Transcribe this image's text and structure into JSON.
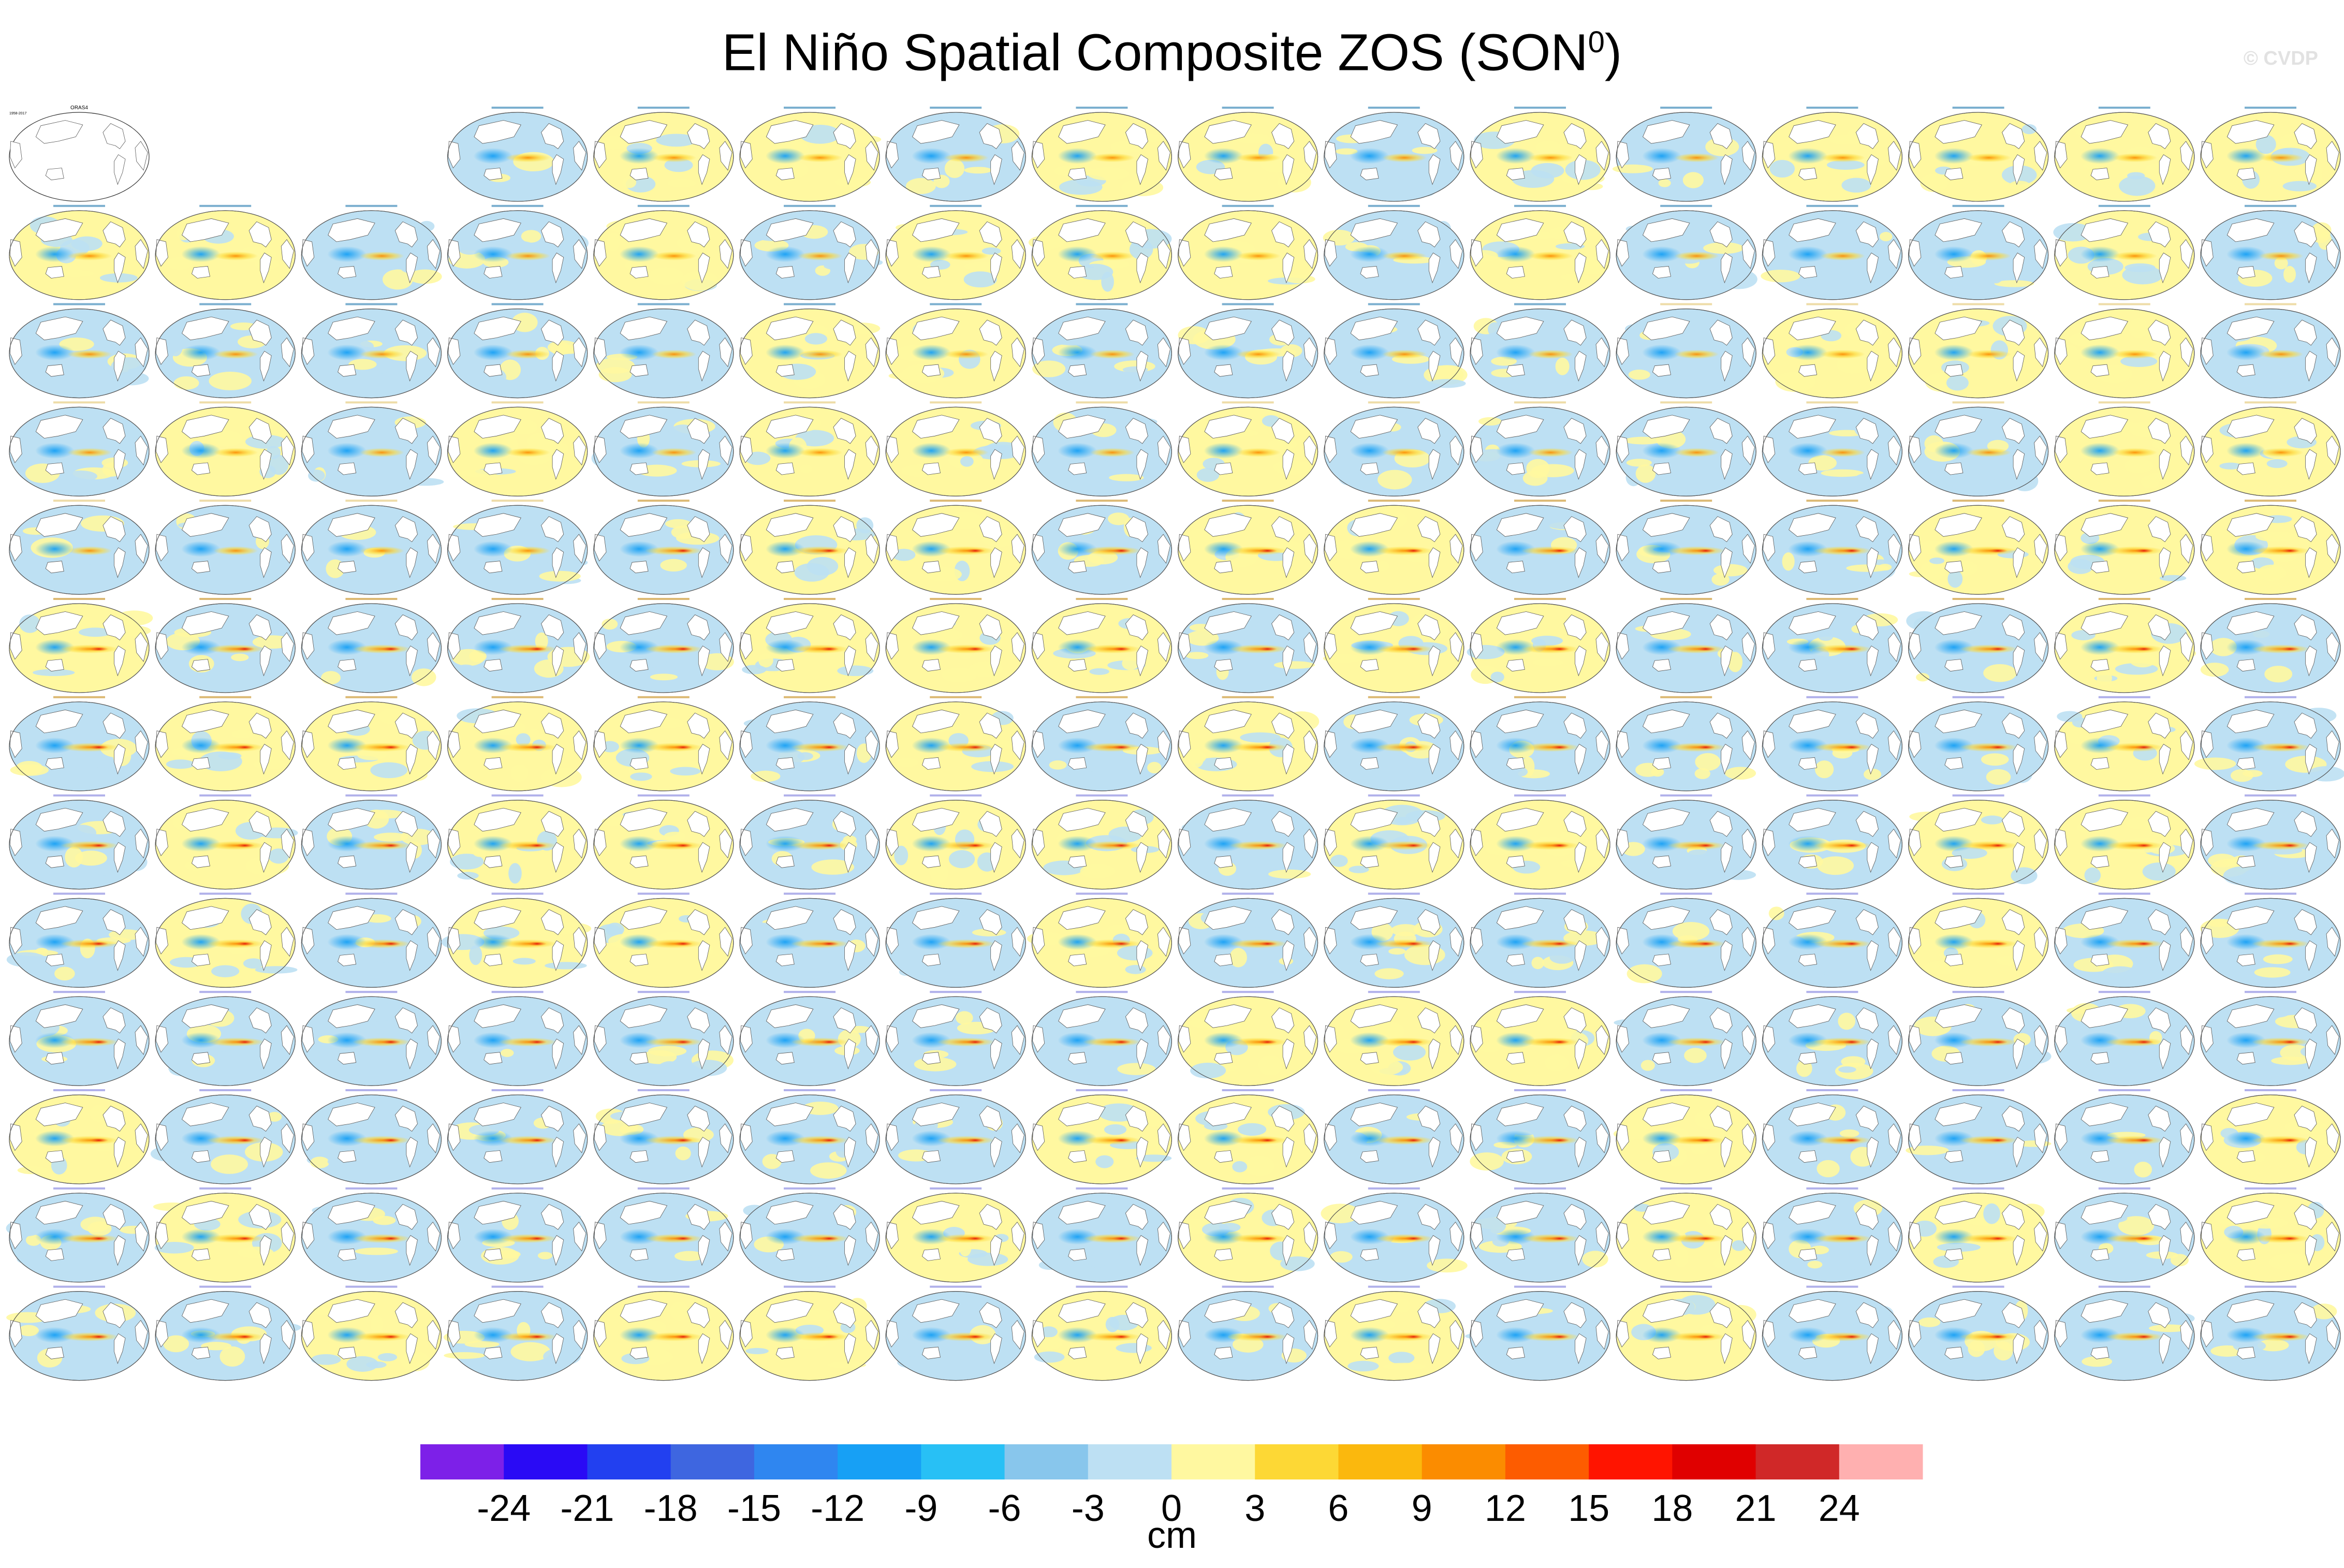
{
  "title": {
    "main": "El Niño Spatial Composite ZOS (SON",
    "superscript": "0",
    "close": ")"
  },
  "watermark": "© CVDP",
  "observation_panel": {
    "label": "ORAS4",
    "period": "1958-2017"
  },
  "panel_grid": {
    "rows": 13,
    "columns": 16,
    "first_row_empty_slots": 2
  },
  "model_groups": [
    {
      "name": "ACCESS-ESM1-5",
      "count": 40,
      "title_color": "#0f6ea8"
    },
    {
      "name": "CanESM5",
      "count": 25,
      "title_color": "#e0c060"
    },
    {
      "name": "CESM1",
      "count": 40,
      "title_color": "#c08000"
    },
    {
      "name": "CESM2",
      "count": 100,
      "title_color": "#7070d8"
    }
  ],
  "chart_data": {
    "type": "heatmap",
    "title": "El Niño Spatial Composite ZOS (SON0)",
    "colorbar": {
      "unit": "cm",
      "tick_labels": [
        "-24",
        "-21",
        "-18",
        "-15",
        "-12",
        "-9",
        "-6",
        "-3",
        "0",
        "3",
        "6",
        "9",
        "12",
        "15",
        "18",
        "21",
        "24"
      ],
      "colors": [
        "#7d20e8",
        "#2a0af5",
        "#2240f0",
        "#3e66e0",
        "#2f86f0",
        "#17a0f5",
        "#28c0f5",
        "#88c6ec",
        "#bde0f3",
        "#fff8a0",
        "#fdd835",
        "#fbb80d",
        "#fb8c00",
        "#fd5c00",
        "#ff1400",
        "#e00000",
        "#d02828",
        "#ffb0b0"
      ],
      "range": [
        -24,
        24
      ]
    },
    "panel_count": 206,
    "pattern_summary": "Each panel is a global map of the El Niño composite of sea level (ZOS) anomalies for SON0, showing negative anomalies (blue) in the western tropical Pacific and positive anomalies (orange/red) in the central-eastern equatorial Pacific."
  }
}
